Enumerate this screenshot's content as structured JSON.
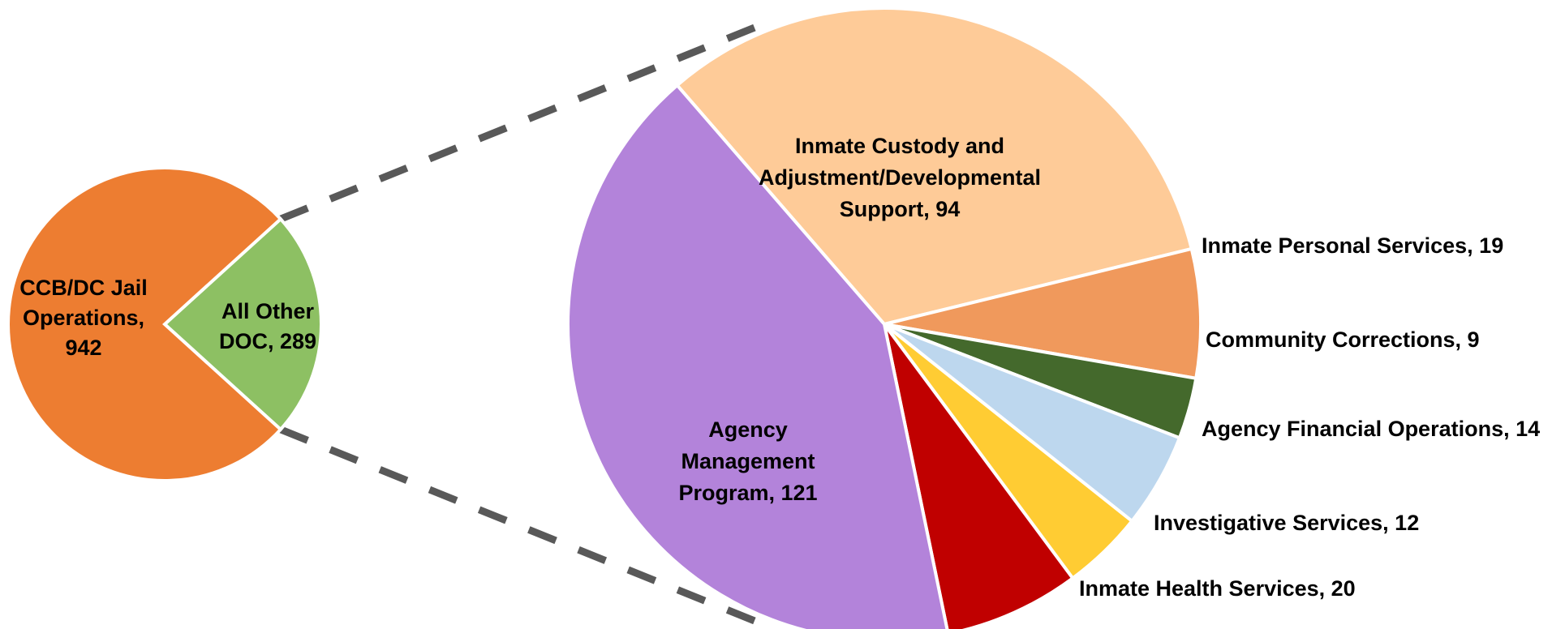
{
  "chart_data": [
    {
      "type": "pie",
      "name_hint": "overview",
      "slices": [
        {
          "label_lines": [
            "CCB/DC Jail",
            "Operations,",
            "942"
          ],
          "value": 942,
          "color": "#ED7D31"
        },
        {
          "label_lines": [
            "All Other",
            "DOC, 289"
          ],
          "value": 289,
          "color": "#8DC063"
        }
      ]
    },
    {
      "type": "pie",
      "name_hint": "breakdown",
      "slices": [
        {
          "label_lines": [
            "Inmate Custody and",
            "Adjustment/Developmental",
            "Support, 94"
          ],
          "value": 94,
          "color": "#FECB98"
        },
        {
          "label_lines": [
            "Inmate Personal Services, 19"
          ],
          "value": 19,
          "color": "#F0995C"
        },
        {
          "label_lines": [
            "Community Corrections, 9"
          ],
          "value": 9,
          "color": "#44692C"
        },
        {
          "label_lines": [
            "Agency Financial Operations, 14"
          ],
          "value": 14,
          "color": "#BDD7EE"
        },
        {
          "label_lines": [
            "Investigative Services, 12"
          ],
          "value": 12,
          "color": "#FFCC33"
        },
        {
          "label_lines": [
            "Inmate Health Services, 20"
          ],
          "value": 20,
          "color": "#C00000"
        },
        {
          "label_lines": [
            "Agency",
            "Management",
            "Program, 121"
          ],
          "value": 121,
          "color": "#B383DA"
        }
      ]
    }
  ],
  "colors": {
    "connector": "#595959",
    "slice_border": "#ffffff"
  }
}
